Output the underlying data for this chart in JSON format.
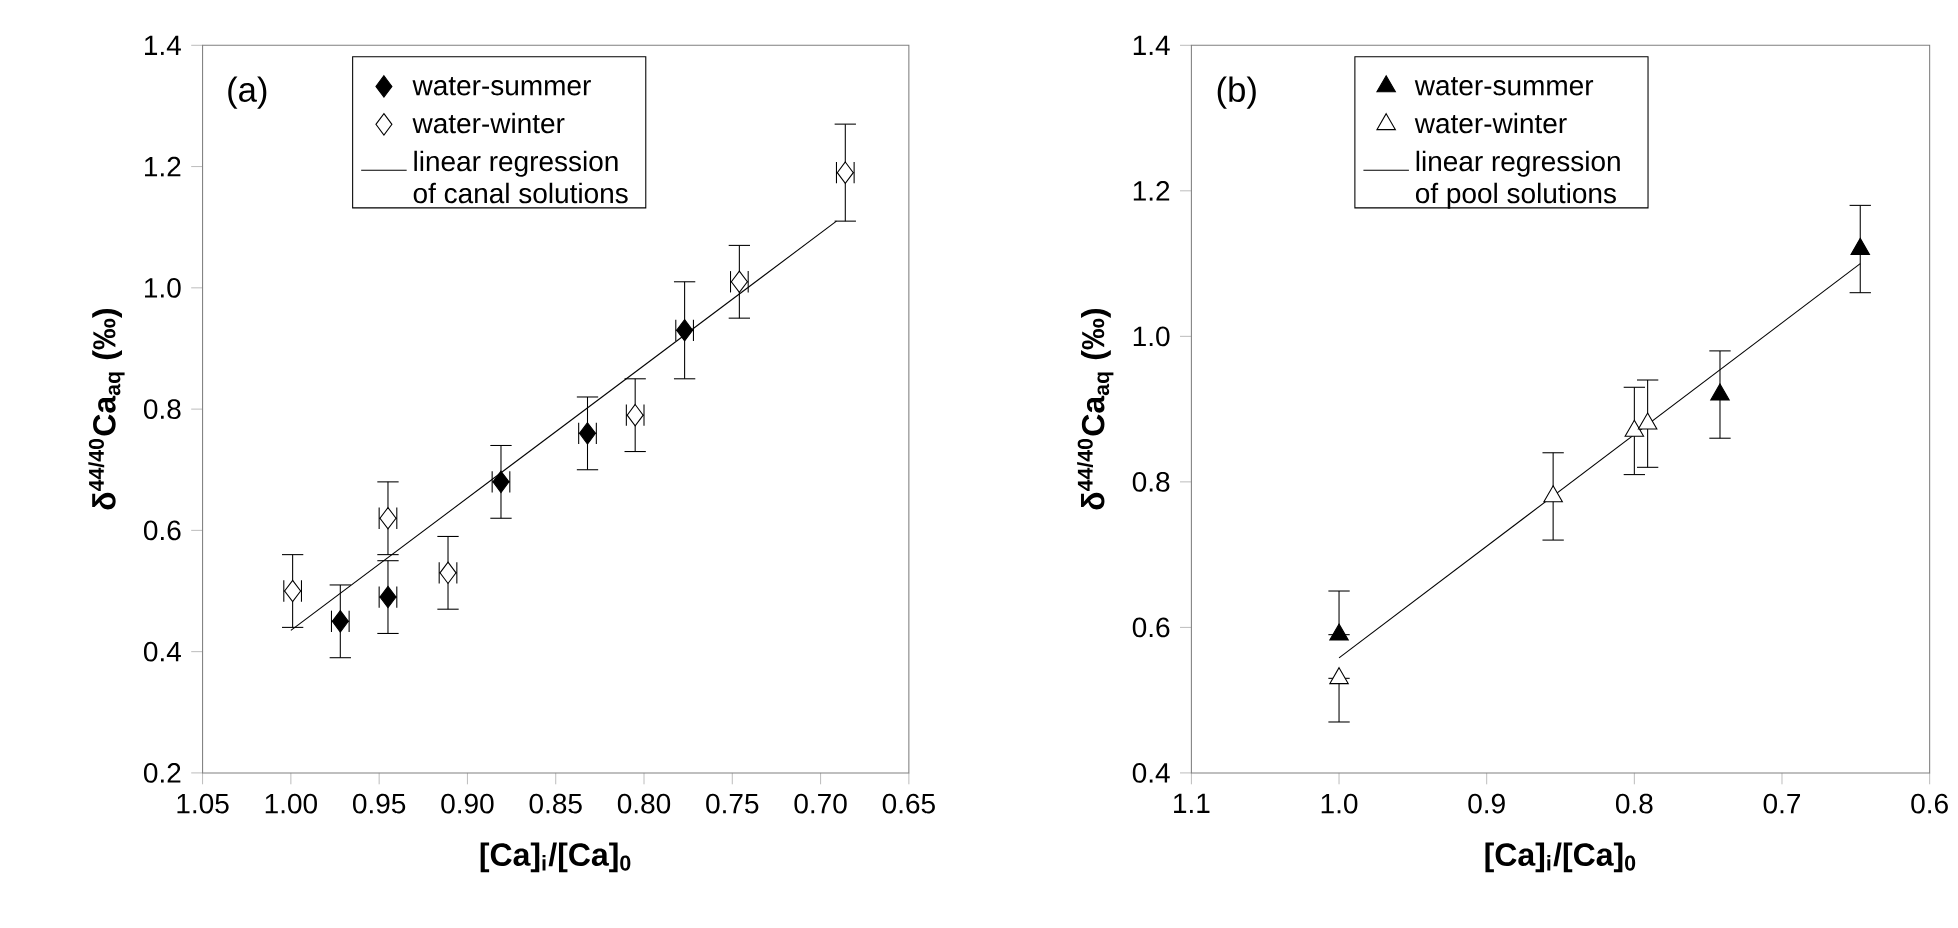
{
  "chart_data": [
    {
      "type": "scatter",
      "xlabel": "[Ca]$_{i}$/[Ca]$_{0}$",
      "ylabel": "δ$^{44/40}$Ca$_{aq}$ (‰)",
      "xlim": [
        1.05,
        0.65
      ],
      "ylim": [
        0.2,
        1.4
      ],
      "xticks": [
        1.05,
        {
          "value": 1.0,
          "label": "1.00"
        },
        0.95,
        {
          "value": 0.9,
          "label": "0.90"
        },
        0.85,
        {
          "value": 0.8,
          "label": "0.80"
        },
        0.75,
        {
          "value": 0.7,
          "label": "0.70"
        },
        0.65
      ],
      "yticks": [
        0.2,
        0.4,
        0.6,
        0.8,
        {
          "value": 1.0,
          "label": "1.0"
        },
        1.2,
        1.4
      ],
      "annotations": [
        "(a)"
      ],
      "legend": "top",
      "grid": false,
      "line_style": "solid",
      "series": [
        {
          "name": "water-summer",
          "type": "scatter",
          "marker": "diamond",
          "color": "#000000",
          "x": [
            0.972,
            0.945,
            0.881,
            0.832,
            0.777
          ],
          "values": [
            0.45,
            0.49,
            0.68,
            0.76,
            0.93
          ],
          "errors": [
            0.06,
            0.06,
            0.06,
            0.06,
            0.08
          ],
          "xerrors": [
            0.005,
            0.005,
            0.005,
            0.005,
            0.005
          ]
        },
        {
          "name": "water-winter",
          "type": "scatter",
          "marker": "diamond",
          "color": "#ffffff",
          "x": [
            0.999,
            0.945,
            0.911,
            0.805,
            0.746,
            0.686
          ],
          "values": [
            0.5,
            0.62,
            0.53,
            0.79,
            1.01,
            1.19
          ],
          "errors": [
            0.06,
            0.06,
            0.06,
            0.06,
            0.06,
            0.08
          ],
          "xerrors": [
            0.005,
            0.005,
            0.005,
            0.005,
            0.005,
            0.005
          ]
        },
        {
          "name": "linear regression of canal solutions",
          "type": "line",
          "marker": "none",
          "color": "#000000",
          "x": [
            1.0,
            0.691
          ],
          "values": [
            0.435,
            1.11
          ]
        }
      ]
    },
    {
      "type": "scatter",
      "xlabel": "[Ca]$_{i}$/[Ca]$_{0}$",
      "ylabel": "δ$^{44/40}$Ca$_{aq}$ (‰)",
      "xlim": [
        1.1,
        0.6
      ],
      "ylim": [
        0.4,
        1.4
      ],
      "xticks": [
        1.1,
        {
          "value": 1.0,
          "label": "1.0"
        },
        0.9,
        0.8,
        0.7,
        0.6
      ],
      "yticks": [
        0.4,
        0.6,
        0.8,
        {
          "value": 1.0,
          "label": "1.0"
        },
        1.2,
        1.4
      ],
      "annotations": [
        "(b)"
      ],
      "legend": "top",
      "grid": false,
      "line_style": "solid",
      "series": [
        {
          "name": "water-summer",
          "type": "scatter",
          "marker": "triangle",
          "color": "#000000",
          "x": [
            1.0,
            0.742,
            0.647
          ],
          "values": [
            0.59,
            0.92,
            1.12
          ],
          "errors": [
            [
              0.59,
              0.65
            ],
            0.06,
            0.06
          ]
        },
        {
          "name": "water-winter",
          "type": "scatter",
          "marker": "triangle",
          "color": "#ffffff",
          "x": [
            1.0,
            0.855,
            0.8,
            0.791
          ],
          "values": [
            0.53,
            0.78,
            0.87,
            0.88
          ],
          "errors": [
            [
              0.47,
              0.53
            ],
            0.06,
            0.06,
            0.06
          ]
        },
        {
          "name": "linear regression of pool solutions",
          "type": "line",
          "marker": "none",
          "color": "#000000",
          "x": [
            1.0,
            0.647
          ],
          "values": [
            0.558,
            1.1
          ]
        }
      ]
    }
  ]
}
